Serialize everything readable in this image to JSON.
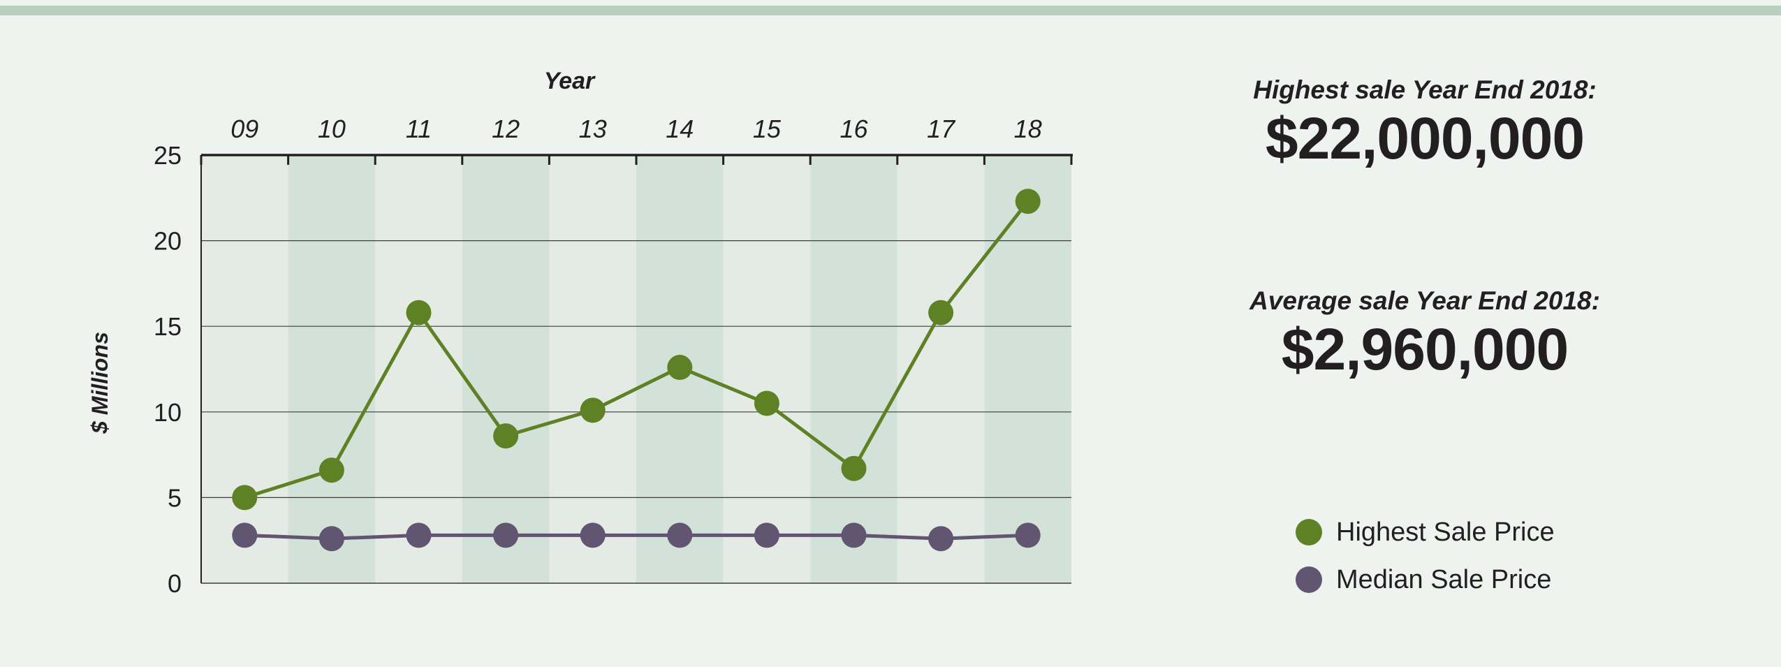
{
  "colors": {
    "background": "#eef3ef",
    "top_bar": "#b7cfbf",
    "band_light": "#e3ebe4",
    "band_dark": "#d3e2d8",
    "highest": "#5f8126",
    "median": "#625571",
    "text": "#231f20"
  },
  "stats": [
    {
      "label": "Highest sale Year End 2018:",
      "value": "$22,000,000"
    },
    {
      "label": "Average sale Year End 2018:",
      "value": "$2,960,000"
    }
  ],
  "chart_data": {
    "type": "line",
    "title": "",
    "xlabel": "Year",
    "ylabel": "$ Millions",
    "categories": [
      "09",
      "10",
      "11",
      "12",
      "13",
      "14",
      "15",
      "16",
      "17",
      "18"
    ],
    "ylim": [
      0,
      25
    ],
    "yticks": [
      0,
      5,
      10,
      15,
      20,
      25
    ],
    "grid": true,
    "x_axis_position": "top",
    "series": [
      {
        "name": "Highest Sale Price",
        "color": "#5f8126",
        "values": [
          5.0,
          6.6,
          15.8,
          8.6,
          10.1,
          12.6,
          10.5,
          6.7,
          15.8,
          22.3
        ]
      },
      {
        "name": "Median Sale Price",
        "color": "#625571",
        "values": [
          2.8,
          2.6,
          2.8,
          2.8,
          2.8,
          2.8,
          2.8,
          2.8,
          2.6,
          2.8
        ]
      }
    ],
    "legend_position": "right"
  }
}
